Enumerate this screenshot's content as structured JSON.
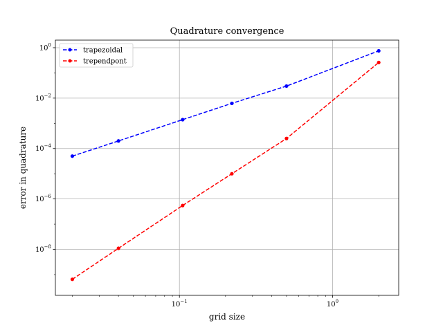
{
  "chart_data": {
    "type": "line",
    "title": "Quadrature convergence",
    "xlabel": "grid size",
    "ylabel": "error in quadrature",
    "xscale": "log",
    "yscale": "log",
    "xlim": [
      0.0155,
      2.7
    ],
    "ylim": [
      1.5e-10,
      2.0
    ],
    "grid": true,
    "legend_loc": "upper left",
    "x_ticks": [
      {
        "value": 0.1,
        "base": "10",
        "exp": "−1"
      },
      {
        "value": 1,
        "base": "10",
        "exp": "0"
      }
    ],
    "y_ticks": [
      {
        "value": 1e-08,
        "base": "10",
        "exp": "−8"
      },
      {
        "value": 1e-06,
        "base": "10",
        "exp": "−6"
      },
      {
        "value": 0.0001,
        "base": "10",
        "exp": "−4"
      },
      {
        "value": 0.01,
        "base": "10",
        "exp": "−2"
      },
      {
        "value": 1,
        "base": "10",
        "exp": "0"
      }
    ],
    "x": [
      0.02,
      0.04,
      0.105,
      0.22,
      0.5,
      2.0
    ],
    "series": [
      {
        "name": "trapezoidal",
        "color": "#0000ff",
        "values": [
          5e-05,
          0.0002,
          0.0014,
          0.0062,
          0.03,
          0.75
        ]
      },
      {
        "name": "trependpont",
        "color": "#ff0000",
        "values": [
          6.5e-10,
          1.1e-08,
          5.5e-07,
          1e-05,
          0.00025,
          0.26
        ]
      }
    ]
  }
}
